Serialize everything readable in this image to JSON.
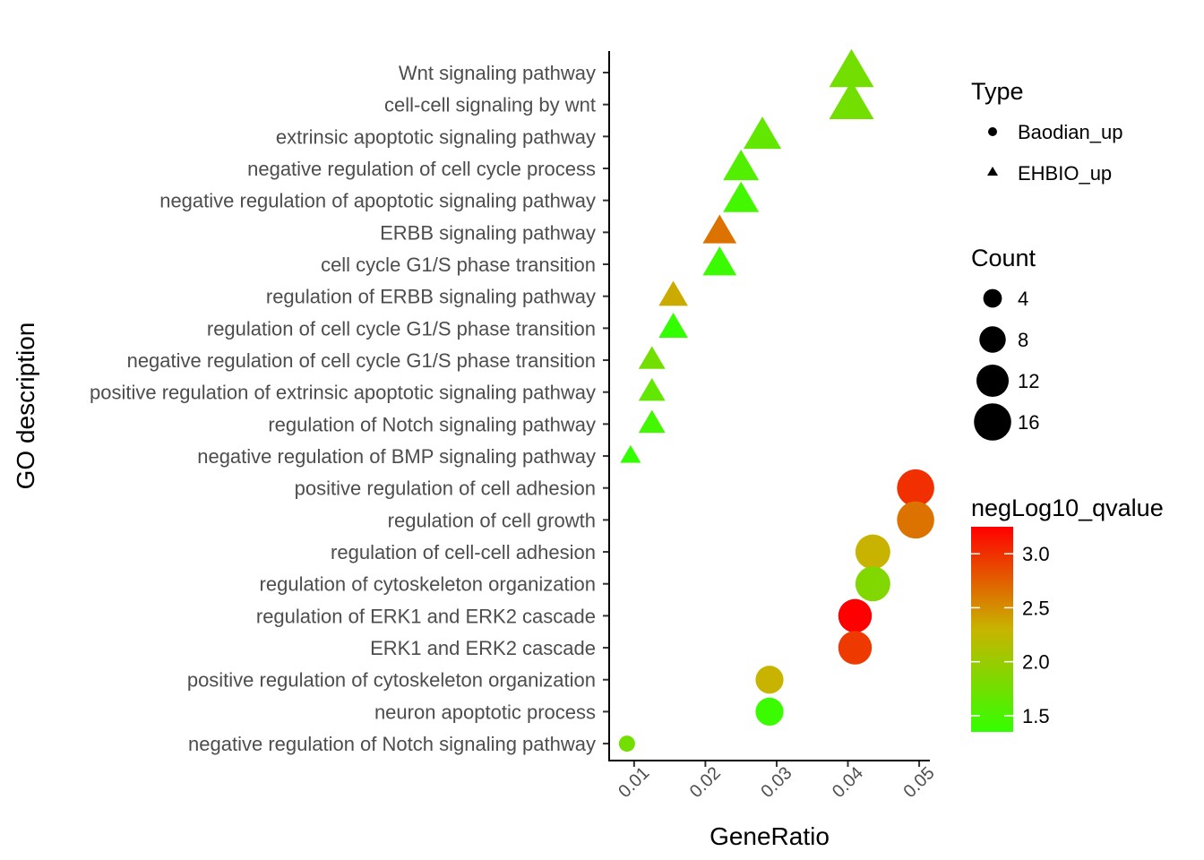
{
  "chart_data": {
    "type": "scatter",
    "xlabel": "GeneRatio",
    "ylabel": "GO description",
    "xlim": [
      0.0065,
      0.0515
    ],
    "x_ticks": [
      0.01,
      0.02,
      0.03,
      0.04,
      0.05
    ],
    "x_tick_labels": [
      "0.01",
      "0.02",
      "0.03",
      "0.04",
      "0.05"
    ],
    "grid": false,
    "legend_placement": "right",
    "categories": [
      "Wnt signaling pathway",
      "cell-cell signaling by wnt",
      "extrinsic apoptotic signaling pathway",
      "negative regulation of cell cycle process",
      "negative regulation of apoptotic signaling pathway",
      "ERBB signaling pathway",
      "cell cycle G1/S phase transition",
      "regulation of ERBB signaling pathway",
      "regulation of cell cycle G1/S phase transition",
      "negative regulation of cell cycle G1/S phase transition",
      "positive regulation of extrinsic apoptotic signaling pathway",
      "regulation of Notch signaling pathway",
      "negative regulation of BMP signaling pathway",
      "positive regulation of cell adhesion",
      "regulation of cell growth",
      "regulation of cell-cell adhesion",
      "regulation of cytoskeleton organization",
      "regulation of ERK1 and ERK2 cascade",
      "ERK1 and ERK2 cascade",
      "positive regulation of cytoskeleton organization",
      "neuron apoptotic process",
      "negative regulation of Notch signaling pathway"
    ],
    "points": [
      {
        "term": "Wnt signaling pathway",
        "x": 0.0405,
        "count": 14,
        "qvalue": 1.75,
        "type": "EHBIO_up"
      },
      {
        "term": "cell-cell signaling by wnt",
        "x": 0.0405,
        "count": 14,
        "qvalue": 1.75,
        "type": "EHBIO_up"
      },
      {
        "term": "extrinsic apoptotic signaling pathway",
        "x": 0.028,
        "count": 10,
        "qvalue": 1.65,
        "type": "EHBIO_up"
      },
      {
        "term": "negative regulation of cell cycle process",
        "x": 0.025,
        "count": 9,
        "qvalue": 1.55,
        "type": "EHBIO_up"
      },
      {
        "term": "negative regulation of apoptotic signaling pathway",
        "x": 0.025,
        "count": 9,
        "qvalue": 1.45,
        "type": "EHBIO_up"
      },
      {
        "term": "ERBB signaling pathway",
        "x": 0.022,
        "count": 8,
        "qvalue": 2.65,
        "type": "EHBIO_up"
      },
      {
        "term": "cell cycle G1/S phase transition",
        "x": 0.022,
        "count": 8,
        "qvalue": 1.4,
        "type": "EHBIO_up"
      },
      {
        "term": "regulation of ERBB signaling pathway",
        "x": 0.0155,
        "count": 6,
        "qvalue": 2.35,
        "type": "EHBIO_up"
      },
      {
        "term": "regulation of cell cycle G1/S phase transition",
        "x": 0.0155,
        "count": 6,
        "qvalue": 1.35,
        "type": "EHBIO_up"
      },
      {
        "term": "negative regulation of cell cycle G1/S phase transition",
        "x": 0.0125,
        "count": 5,
        "qvalue": 1.75,
        "type": "EHBIO_up"
      },
      {
        "term": "positive regulation of extrinsic apoptotic signaling pathway",
        "x": 0.0125,
        "count": 5,
        "qvalue": 1.65,
        "type": "EHBIO_up"
      },
      {
        "term": "regulation of Notch signaling pathway",
        "x": 0.0125,
        "count": 5,
        "qvalue": 1.45,
        "type": "EHBIO_up"
      },
      {
        "term": "negative regulation of BMP signaling pathway",
        "x": 0.0095,
        "count": 3,
        "qvalue": 1.35,
        "type": "EHBIO_up"
      },
      {
        "term": "positive regulation of cell adhesion",
        "x": 0.0495,
        "count": 16,
        "qvalue": 3.0,
        "type": "Baodian_up"
      },
      {
        "term": "regulation of cell growth",
        "x": 0.0495,
        "count": 16,
        "qvalue": 2.65,
        "type": "Baodian_up"
      },
      {
        "term": "regulation of cell-cell adhesion",
        "x": 0.0435,
        "count": 14,
        "qvalue": 2.3,
        "type": "Baodian_up"
      },
      {
        "term": "regulation of cytoskeleton organization",
        "x": 0.0435,
        "count": 14,
        "qvalue": 1.85,
        "type": "Baodian_up"
      },
      {
        "term": "regulation of ERK1 and ERK2 cascade",
        "x": 0.041,
        "count": 13,
        "qvalue": 3.25,
        "type": "Baodian_up"
      },
      {
        "term": "ERK1 and ERK2 cascade",
        "x": 0.041,
        "count": 13,
        "qvalue": 2.95,
        "type": "Baodian_up"
      },
      {
        "term": "positive regulation of cytoskeleton organization",
        "x": 0.029,
        "count": 9,
        "qvalue": 2.3,
        "type": "Baodian_up"
      },
      {
        "term": "neuron apoptotic process",
        "x": 0.029,
        "count": 9,
        "qvalue": 1.4,
        "type": "Baodian_up"
      },
      {
        "term": "negative regulation of Notch signaling pathway",
        "x": 0.009,
        "count": 3,
        "qvalue": 1.75,
        "type": "Baodian_up"
      }
    ],
    "legends": {
      "type": {
        "title": "Type",
        "items": [
          "Baodian_up",
          "EHBIO_up"
        ]
      },
      "count": {
        "title": "Count",
        "values": [
          4,
          8,
          12,
          16
        ],
        "labels": [
          "4",
          "8",
          "12",
          "16"
        ]
      },
      "color": {
        "title": "negLog10_qvalue",
        "range": [
          1.35,
          3.25
        ],
        "ticks": [
          1.5,
          2.0,
          2.5,
          3.0
        ],
        "tick_labels": [
          "1.5",
          "2.0",
          "2.5",
          "3.0"
        ],
        "low_color": "#33ff00",
        "mid_color": "#c8b400",
        "high_color": "#ff0000"
      }
    }
  }
}
